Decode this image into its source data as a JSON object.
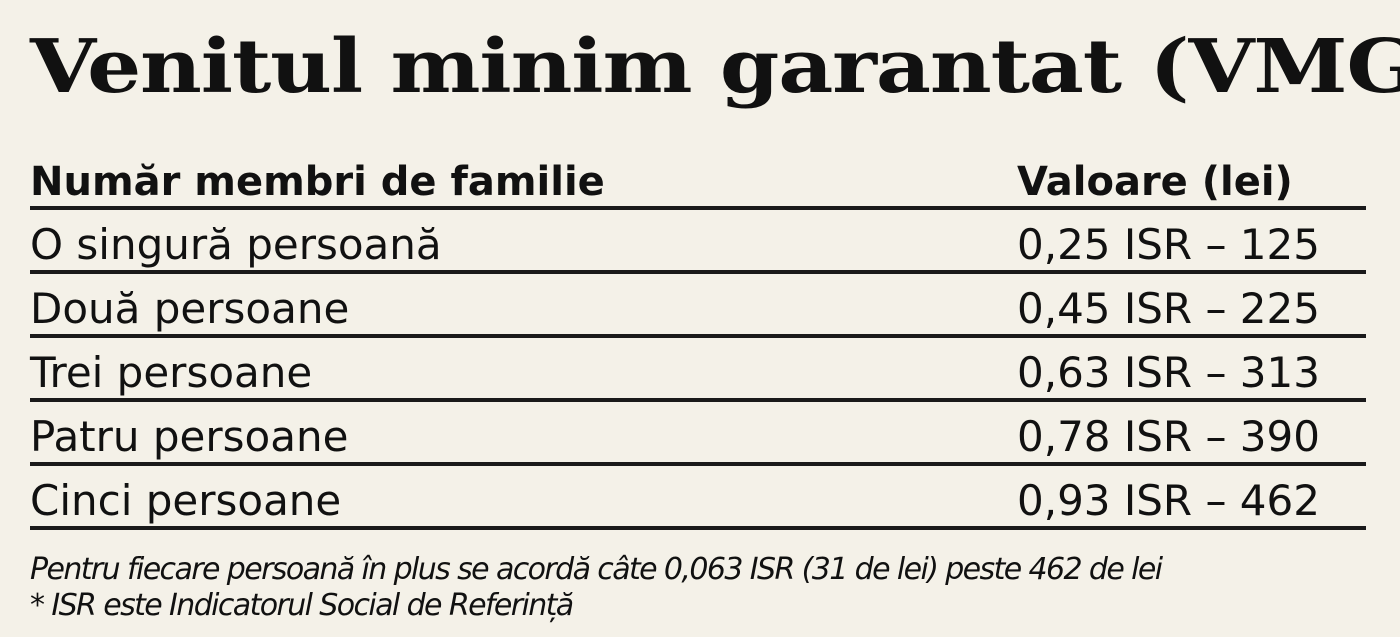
{
  "title": "Venitul minim garantat (VMG)",
  "table": {
    "headers": {
      "members": "Număr membri de familie",
      "value": "Valoare (lei)"
    },
    "rows": [
      {
        "members": "O singură persoană",
        "value": "0,25 ISR – 125"
      },
      {
        "members": "Două persoane",
        "value": "0,45 ISR – 225"
      },
      {
        "members": "Trei persoane",
        "value": "0,63 ISR – 313"
      },
      {
        "members": "Patru persoane",
        "value": "0,78 ISR – 390"
      },
      {
        "members": "Cinci persoane",
        "value": "0,93 ISR – 462"
      }
    ]
  },
  "notes": [
    "Pentru fiecare persoană în plus se acordă câte 0,063 ISR (31 de lei) peste 462 de lei",
    "* ISR este Indicatorul Social de Referință"
  ]
}
